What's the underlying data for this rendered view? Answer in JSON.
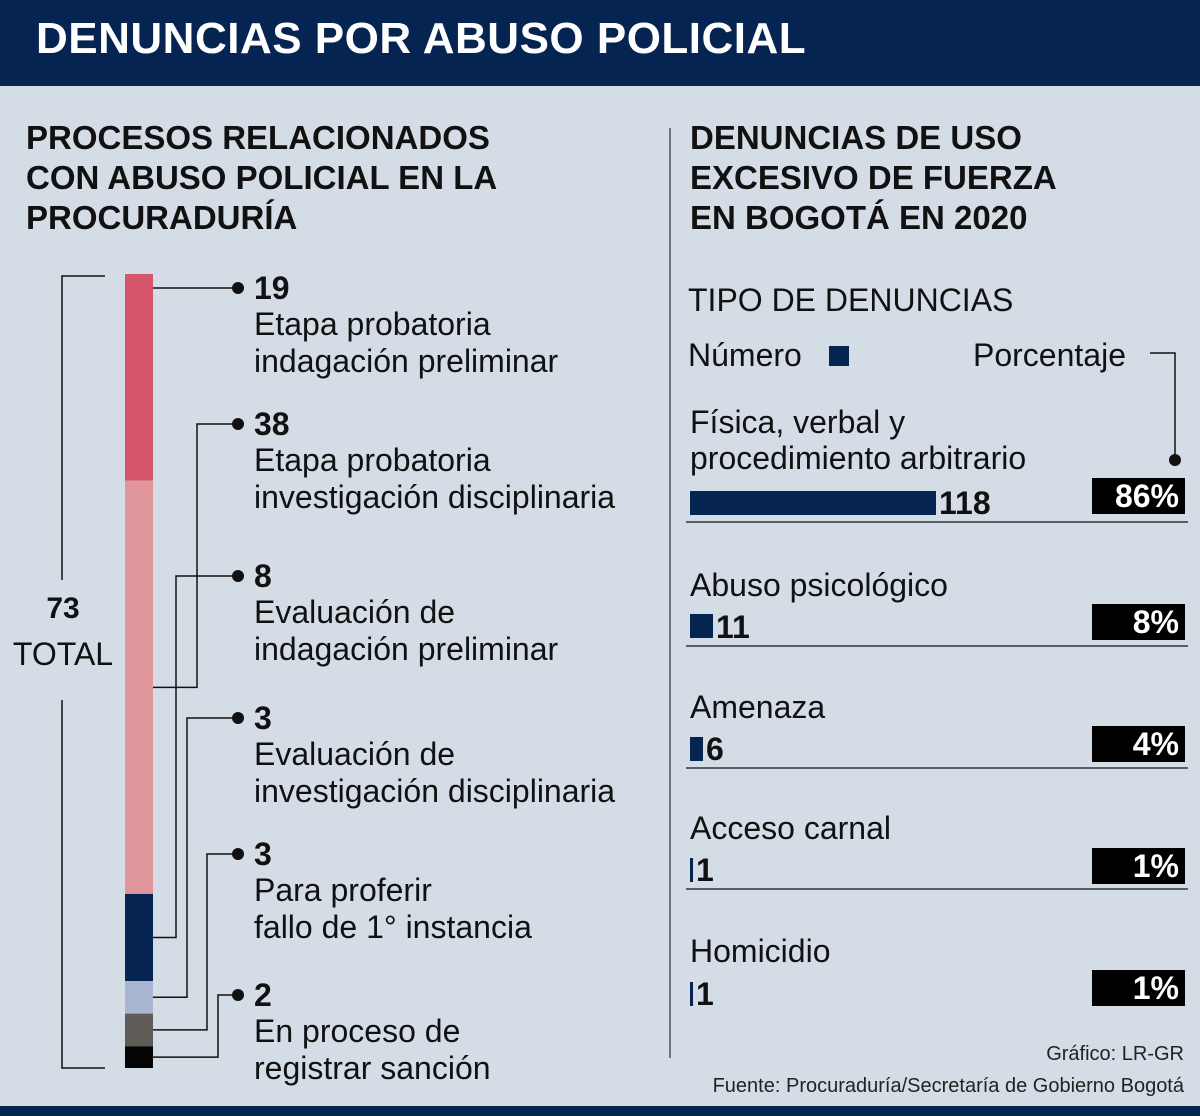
{
  "header": {
    "title": "DENUNCIAS POR ABUSO POLICIAL"
  },
  "colors": {
    "banner": "#062452",
    "background": "#d4dde6",
    "stage1": "#d5566a",
    "stage2": "#e0959b",
    "stage3": "#062452",
    "stage4": "#a9b6d1",
    "stage5": "#5f5c58",
    "stage6": "#050505",
    "bar": "#062452"
  },
  "chart_data": [
    {
      "type": "bar",
      "orientation": "stacked-vertical",
      "title": [
        "PROCESOS RELACIONADOS",
        "CON ABUSO POLICIAL EN LA",
        "PROCURADURÍA"
      ],
      "total": {
        "value": "73",
        "label": "TOTAL"
      },
      "categories": [
        {
          "value": 19,
          "label": [
            "Etapa probatoria",
            "indagación preliminar"
          ]
        },
        {
          "value": 38,
          "label": [
            "Etapa probatoria",
            "investigación disciplinaria"
          ]
        },
        {
          "value": 8,
          "label": [
            "Evaluación de",
            "indagación preliminar"
          ]
        },
        {
          "value": 3,
          "label": [
            "Evaluación de",
            "investigación disciplinaria"
          ]
        },
        {
          "value": 3,
          "label": [
            "Para proferir",
            "fallo de 1° instancia"
          ]
        },
        {
          "value": 2,
          "label": [
            "En proceso de",
            "registrar sanción"
          ]
        }
      ]
    },
    {
      "type": "bar",
      "orientation": "horizontal",
      "title": [
        "DENUNCIAS DE USO",
        "EXCESIVO DE FUERZA",
        "EN BOGOTÁ EN 2020"
      ],
      "subtitle": "TIPO DE DENUNCIAS",
      "legend": {
        "number": "Número",
        "percent": "Porcentaje"
      },
      "categories": [
        {
          "label": [
            "Física, verbal y",
            "procedimiento arbitrario"
          ],
          "value": 118,
          "percent": "86%"
        },
        {
          "label": [
            "Abuso psicológico"
          ],
          "value": 11,
          "percent": "8%"
        },
        {
          "label": [
            "Amenaza"
          ],
          "value": 6,
          "percent": "4%"
        },
        {
          "label": [
            "Acceso carnal"
          ],
          "value": 1,
          "percent": "1%"
        },
        {
          "label": [
            "Homicidio"
          ],
          "value": 1,
          "percent": "1%"
        }
      ]
    }
  ],
  "footer": {
    "graphic": "Gráfico: LR-GR",
    "source": "Fuente: Procuraduría/Secretaría de Gobierno Bogotá"
  }
}
